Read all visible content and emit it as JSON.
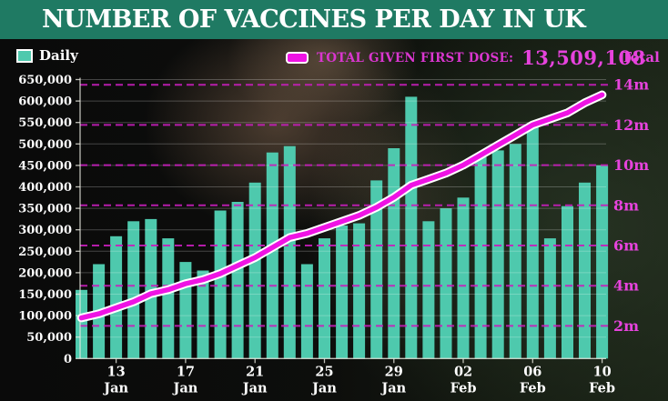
{
  "header": {
    "title": "NUMBER OF VACCINES PER DAY IN UK"
  },
  "legend": {
    "daily_label": "Daily",
    "daily_swatch_color": "#4ec9ad",
    "total_label": "TOTAL GIVEN FIRST DOSE:",
    "total_value": "13,509,108",
    "right_axis_title": "Total"
  },
  "colors": {
    "header_green": "#1f7a63",
    "bar_teal": "#4ec9ad",
    "line_magenta": "#ef13e4",
    "line_outline": "#ffffff",
    "dashed_grid_magenta": "#c81ebc",
    "solid_grid": "rgba(255,255,255,0.24)",
    "axis_line": "rgba(235,235,225,0.8)",
    "left_axis_text": "#ffffff",
    "right_axis_text": "#e743dd"
  },
  "chart_data": {
    "type": "bar+line",
    "title": "NUMBER OF VACCINES PER DAY IN UK",
    "x": [
      "11 Jan",
      "12 Jan",
      "13 Jan",
      "14 Jan",
      "15 Jan",
      "16 Jan",
      "17 Jan",
      "18 Jan",
      "19 Jan",
      "20 Jan",
      "21 Jan",
      "22 Jan",
      "23 Jan",
      "24 Jan",
      "25 Jan",
      "26 Jan",
      "27 Jan",
      "28 Jan",
      "29 Jan",
      "30 Jan",
      "31 Jan",
      "01 Feb",
      "02 Feb",
      "03 Feb",
      "04 Feb",
      "05 Feb",
      "06 Feb",
      "07 Feb",
      "08 Feb",
      "09 Feb",
      "10 Feb"
    ],
    "series": [
      {
        "name": "Daily",
        "type": "bar",
        "axis": "left",
        "values": [
          160000,
          220000,
          285000,
          320000,
          325000,
          280000,
          225000,
          205000,
          345000,
          365000,
          410000,
          480000,
          495000,
          220000,
          280000,
          310000,
          315000,
          415000,
          490000,
          610000,
          320000,
          350000,
          375000,
          470000,
          485000,
          500000,
          545000,
          280000,
          355000,
          410000,
          450000
        ]
      },
      {
        "name": "Total given first dose",
        "type": "line",
        "axis": "right",
        "unit": "millions",
        "values": [
          2.4,
          2.6,
          2.9,
          3.2,
          3.6,
          3.8,
          4.1,
          4.3,
          4.6,
          5.0,
          5.4,
          5.9,
          6.4,
          6.6,
          6.9,
          7.2,
          7.5,
          7.9,
          8.4,
          9.0,
          9.3,
          9.6,
          10.0,
          10.5,
          11.0,
          11.5,
          12.0,
          12.3,
          12.6,
          13.1,
          13.5
        ],
        "final_value_label": "13,509,108"
      }
    ],
    "left_axis": {
      "min": 0,
      "max": 650000,
      "step": 50000,
      "labels": [
        "650,000",
        "600,000",
        "550,000",
        "500,000",
        "450,000",
        "400,000",
        "350,000",
        "300,000",
        "250,000",
        "200,000",
        "150,000",
        "100,000",
        "50,000",
        "0"
      ]
    },
    "right_axis": {
      "title": "Total",
      "labels": [
        "14m",
        "12m",
        "10m",
        "8m",
        "6m",
        "4m",
        "2m"
      ],
      "values_m": [
        14,
        12,
        10,
        8,
        6,
        4,
        2
      ]
    },
    "x_ticks": [
      {
        "day": "13",
        "month": "Jan",
        "index": 2
      },
      {
        "day": "17",
        "month": "Jan",
        "index": 6
      },
      {
        "day": "21",
        "month": "Jan",
        "index": 10
      },
      {
        "day": "25",
        "month": "Jan",
        "index": 14
      },
      {
        "day": "29",
        "month": "Jan",
        "index": 18
      },
      {
        "day": "02",
        "month": "Feb",
        "index": 22
      },
      {
        "day": "06",
        "month": "Feb",
        "index": 26
      },
      {
        "day": "10",
        "month": "Feb",
        "index": 30
      }
    ],
    "grid": {
      "horizontal_solid_every": 50000,
      "dashed_magenta_every_m": 2
    },
    "legend_position": "top"
  }
}
